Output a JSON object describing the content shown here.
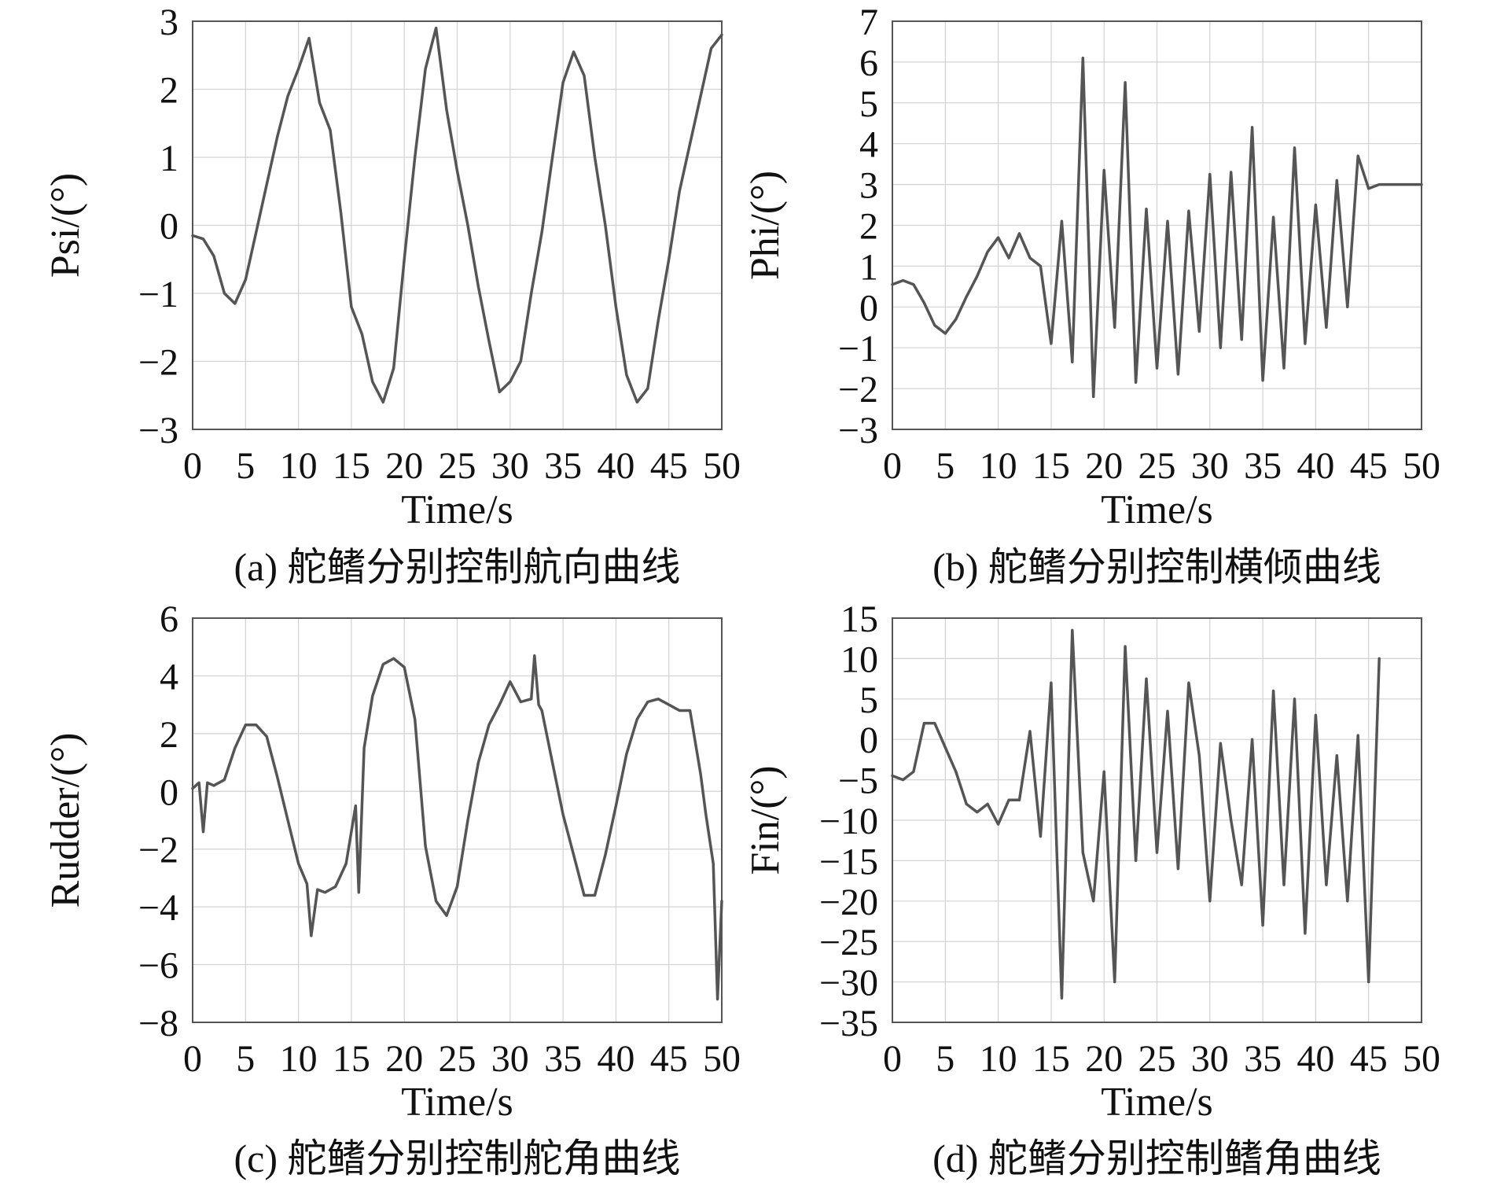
{
  "colors": {
    "line": "#555555",
    "grid": "#d2d2d2",
    "frame": "#555555",
    "text": "#111111",
    "background": "#ffffff"
  },
  "chart_data": [
    {
      "type": "line",
      "caption": "(a) 舵鳍分别控制航向曲线",
      "xlabel": "Time/s",
      "ylabel": "Psi/(°)",
      "xlim": [
        0,
        50
      ],
      "ylim": [
        -3,
        3
      ],
      "xticks": [
        0,
        5,
        10,
        15,
        20,
        25,
        30,
        35,
        40,
        45,
        50
      ],
      "yticks": [
        3,
        2,
        1,
        0,
        -1,
        -2,
        -3
      ],
      "grid": true,
      "series": [
        {
          "x": [
            0,
            1,
            2,
            3,
            4,
            5,
            6,
            7,
            8,
            9,
            10,
            11,
            12,
            13,
            14,
            15,
            16,
            17,
            18,
            19,
            20,
            21,
            22,
            23,
            24,
            25,
            26,
            27,
            28,
            29,
            30,
            31,
            32,
            33,
            34,
            35,
            36,
            37,
            38,
            39,
            40,
            41,
            42,
            43,
            44,
            45,
            46,
            47,
            48,
            49,
            50
          ],
          "y": [
            -0.15,
            -0.2,
            -0.45,
            -1.0,
            -1.15,
            -0.8,
            -0.1,
            0.6,
            1.3,
            1.9,
            2.3,
            2.75,
            1.8,
            1.4,
            0.2,
            -1.2,
            -1.6,
            -2.3,
            -2.6,
            -2.1,
            -0.5,
            1.0,
            2.3,
            2.9,
            1.7,
            0.8,
            0.0,
            -0.9,
            -1.7,
            -2.45,
            -2.3,
            -2.0,
            -1.0,
            -0.1,
            1.0,
            2.1,
            2.55,
            2.2,
            1.0,
            0.0,
            -1.2,
            -2.2,
            -2.6,
            -2.4,
            -1.4,
            -0.5,
            0.5,
            1.2,
            1.9,
            2.6,
            2.8
          ]
        }
      ]
    },
    {
      "type": "line",
      "caption": "(b) 舵鳍分别控制横倾曲线",
      "xlabel": "Time/s",
      "ylabel": "Phi/(°)",
      "xlim": [
        0,
        50
      ],
      "ylim": [
        -3,
        7
      ],
      "xticks": [
        0,
        5,
        10,
        15,
        20,
        25,
        30,
        35,
        40,
        45,
        50
      ],
      "yticks": [
        7,
        6,
        5,
        4,
        3,
        2,
        1,
        0,
        -1,
        -2,
        -3
      ],
      "grid": true,
      "series": [
        {
          "x": [
            0,
            1,
            2,
            3,
            4,
            5,
            6,
            7,
            8,
            9,
            10,
            11,
            12,
            13,
            14,
            15,
            16,
            17,
            18,
            19,
            20,
            21,
            22,
            23,
            24,
            25,
            26,
            27,
            28,
            29,
            30,
            31,
            32,
            33,
            34,
            35,
            36,
            37,
            38,
            39,
            40,
            41,
            42,
            43,
            44,
            45,
            46,
            47,
            48,
            49,
            50
          ],
          "y": [
            0.55,
            0.65,
            0.55,
            0.1,
            -0.45,
            -0.65,
            -0.3,
            0.25,
            0.75,
            1.35,
            1.7,
            1.2,
            1.8,
            1.2,
            1.0,
            -0.9,
            2.1,
            -1.35,
            6.1,
            -2.2,
            3.35,
            -0.5,
            5.5,
            -1.85,
            2.4,
            -1.5,
            2.1,
            -1.65,
            2.35,
            -0.6,
            3.25,
            -1.0,
            3.3,
            -0.8,
            4.4,
            -1.8,
            2.2,
            -1.5,
            3.9,
            -0.9,
            2.5,
            -0.5,
            3.1,
            0.0,
            3.7,
            2.9,
            3.0,
            3.0,
            3.0,
            3.0,
            3.0
          ]
        }
      ]
    },
    {
      "type": "line",
      "caption": "(c) 舵鳍分别控制舵角曲线",
      "xlabel": "Time/s",
      "ylabel": "Rudder/(°)",
      "xlim": [
        0,
        50
      ],
      "ylim": [
        -8,
        6
      ],
      "xticks": [
        0,
        5,
        10,
        15,
        20,
        25,
        30,
        35,
        40,
        45,
        50
      ],
      "yticks": [
        6,
        4,
        2,
        0,
        -2,
        -4,
        -6,
        -8
      ],
      "grid": true,
      "series": [
        {
          "x": [
            0,
            0.6,
            1.0,
            1.4,
            2,
            3,
            4,
            5,
            6,
            7,
            8,
            9,
            10,
            10.8,
            11.2,
            11.8,
            12.5,
            13.5,
            14.5,
            15.4,
            15.7,
            16.2,
            17,
            18,
            19,
            20,
            21,
            22,
            23,
            24,
            25,
            26,
            27,
            28,
            29,
            30,
            31,
            32,
            32.3,
            32.7,
            33,
            34,
            35,
            36,
            37,
            38,
            39,
            40,
            41,
            42,
            43,
            44,
            45,
            46,
            47,
            48,
            48.5,
            49.2,
            49.6,
            50
          ],
          "y": [
            0.1,
            0.3,
            -1.4,
            0.3,
            0.2,
            0.4,
            1.5,
            2.3,
            2.3,
            1.9,
            0.5,
            -1.0,
            -2.5,
            -3.2,
            -5.0,
            -3.4,
            -3.5,
            -3.3,
            -2.5,
            -0.5,
            -3.5,
            1.5,
            3.3,
            4.4,
            4.6,
            4.3,
            2.5,
            -1.9,
            -3.8,
            -4.3,
            -3.3,
            -1.0,
            1.0,
            2.3,
            3.0,
            3.8,
            3.1,
            3.2,
            4.7,
            3.0,
            2.8,
            1.0,
            -0.8,
            -2.2,
            -3.6,
            -3.6,
            -2.2,
            -0.5,
            1.3,
            2.5,
            3.1,
            3.2,
            3.0,
            2.8,
            2.8,
            0.6,
            -0.8,
            -2.5,
            -7.2,
            -3.8
          ]
        }
      ]
    },
    {
      "type": "line",
      "caption": "(d) 舵鳍分别控制鳍角曲线",
      "xlabel": "Time/s",
      "ylabel": "Fin/(°)",
      "xlim": [
        0,
        50
      ],
      "ylim": [
        -35,
        15
      ],
      "xticks": [
        0,
        5,
        10,
        15,
        20,
        25,
        30,
        35,
        40,
        45,
        50
      ],
      "yticks": [
        15,
        10,
        5,
        0,
        -5,
        -10,
        -15,
        -20,
        -25,
        -30,
        -35
      ],
      "grid": true,
      "series": [
        {
          "x": [
            0,
            1,
            2,
            3,
            4,
            5,
            6,
            7,
            8,
            9,
            10,
            11,
            12,
            13,
            14,
            15,
            16,
            17,
            18,
            19,
            20,
            21,
            22,
            23,
            24,
            25,
            26,
            27,
            28,
            29,
            30,
            31,
            32,
            33,
            34,
            35,
            36,
            37,
            38,
            39,
            40,
            41,
            42,
            43,
            44,
            45,
            46
          ],
          "y": [
            -4.5,
            -5,
            -4,
            2,
            2,
            -1,
            -4,
            -8,
            -9,
            -8,
            -10.5,
            -7.5,
            -7.5,
            1,
            -12,
            7,
            -32,
            13.5,
            -14,
            -20,
            -4,
            -30,
            11.5,
            -15,
            7.5,
            -14,
            3.5,
            -16,
            7,
            -2,
            -20,
            -0.5,
            -10,
            -18,
            0,
            -23,
            6,
            -18,
            5,
            -24,
            3,
            -18,
            -2,
            -20,
            0.5,
            -30,
            10
          ]
        }
      ]
    }
  ]
}
